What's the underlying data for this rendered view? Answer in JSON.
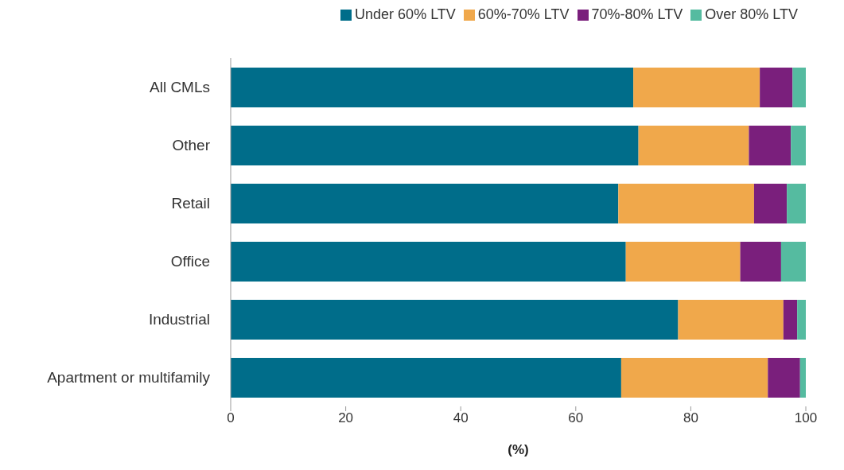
{
  "chart_data": {
    "type": "bar",
    "orientation": "horizontal",
    "stacked": true,
    "xlabel": "(%)",
    "categories": [
      "All CMLs",
      "Other",
      "Retail",
      "Office",
      "Industrial",
      "Apartment or multifamily"
    ],
    "series": [
      {
        "name": "Under 60% LTV",
        "color": "#006d8a",
        "values": [
          70.0,
          70.9,
          67.4,
          68.7,
          77.8,
          67.9
        ]
      },
      {
        "name": "60%-70% LTV",
        "color": "#f0a84b",
        "values": [
          22.0,
          19.2,
          23.6,
          19.9,
          18.3,
          25.5
        ]
      },
      {
        "name": "70%-80% LTV",
        "color": "#7a1f7c",
        "values": [
          5.7,
          7.3,
          5.7,
          7.1,
          2.4,
          5.6
        ]
      },
      {
        "name": "Over 80% LTV",
        "color": "#55bba0",
        "values": [
          2.3,
          2.6,
          3.3,
          4.3,
          1.5,
          1.0
        ]
      }
    ],
    "xlim": [
      0,
      100
    ],
    "xticks": [
      0,
      20,
      40,
      60,
      80,
      100
    ],
    "legend": "top right"
  }
}
